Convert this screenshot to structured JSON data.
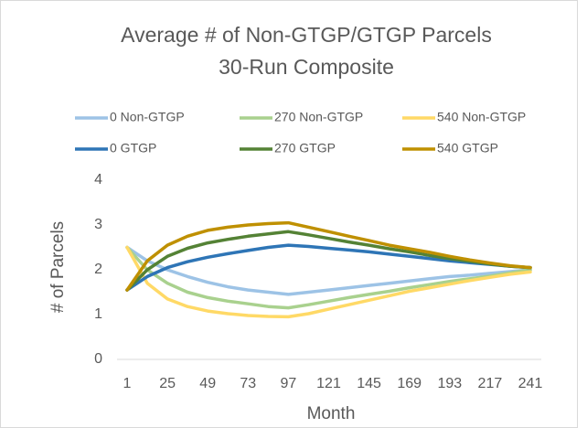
{
  "chart_data": {
    "type": "line",
    "title": "Average # of Non-GTGP/GTGP Parcels",
    "subtitle": "30-Run Composite",
    "x_label": "Month",
    "y_label": "# of Parcels",
    "x": [
      1,
      13,
      25,
      37,
      49,
      61,
      73,
      85,
      97,
      109,
      121,
      133,
      145,
      157,
      169,
      181,
      193,
      205,
      217,
      229,
      241
    ],
    "series": [
      {
        "name": "0 Non-GTGP",
        "color": "#9dc3e6",
        "values": [
          2.5,
          2.2,
          2.0,
          1.85,
          1.72,
          1.62,
          1.55,
          1.5,
          1.45,
          1.5,
          1.55,
          1.6,
          1.65,
          1.7,
          1.75,
          1.8,
          1.85,
          1.88,
          1.92,
          1.96,
          2.0
        ]
      },
      {
        "name": "270 Non-GTGP",
        "color": "#a9d18e",
        "values": [
          2.5,
          2.0,
          1.7,
          1.5,
          1.38,
          1.3,
          1.24,
          1.18,
          1.15,
          1.22,
          1.3,
          1.38,
          1.45,
          1.52,
          1.6,
          1.67,
          1.74,
          1.8,
          1.86,
          1.93,
          2.0
        ]
      },
      {
        "name": "540 Non-GTGP",
        "color": "#ffd966",
        "values": [
          2.5,
          1.7,
          1.35,
          1.18,
          1.08,
          1.02,
          0.98,
          0.96,
          0.95,
          1.02,
          1.12,
          1.22,
          1.32,
          1.42,
          1.52,
          1.6,
          1.68,
          1.76,
          1.83,
          1.9,
          1.95
        ]
      },
      {
        "name": "0 GTGP",
        "color": "#2e75b6",
        "values": [
          1.55,
          1.85,
          2.05,
          2.18,
          2.28,
          2.36,
          2.43,
          2.5,
          2.55,
          2.52,
          2.48,
          2.44,
          2.4,
          2.35,
          2.3,
          2.25,
          2.2,
          2.16,
          2.12,
          2.08,
          2.05
        ]
      },
      {
        "name": "270 GTGP",
        "color": "#548235",
        "values": [
          1.55,
          2.0,
          2.3,
          2.48,
          2.6,
          2.68,
          2.75,
          2.8,
          2.85,
          2.78,
          2.7,
          2.62,
          2.55,
          2.47,
          2.4,
          2.32,
          2.25,
          2.19,
          2.13,
          2.08,
          2.05
        ]
      },
      {
        "name": "540 GTGP",
        "color": "#bf9000",
        "values": [
          1.55,
          2.2,
          2.55,
          2.75,
          2.88,
          2.95,
          3.0,
          3.03,
          3.05,
          2.95,
          2.85,
          2.75,
          2.65,
          2.55,
          2.47,
          2.39,
          2.3,
          2.22,
          2.15,
          2.09,
          2.05
        ]
      }
    ],
    "xlim": [
      1,
      241
    ],
    "xticks": [
      1,
      25,
      49,
      73,
      97,
      121,
      145,
      169,
      193,
      217,
      241
    ],
    "ylim": [
      0,
      4
    ],
    "yticks": [
      0,
      1,
      2,
      3,
      4
    ],
    "grid": false,
    "legend": "top"
  }
}
